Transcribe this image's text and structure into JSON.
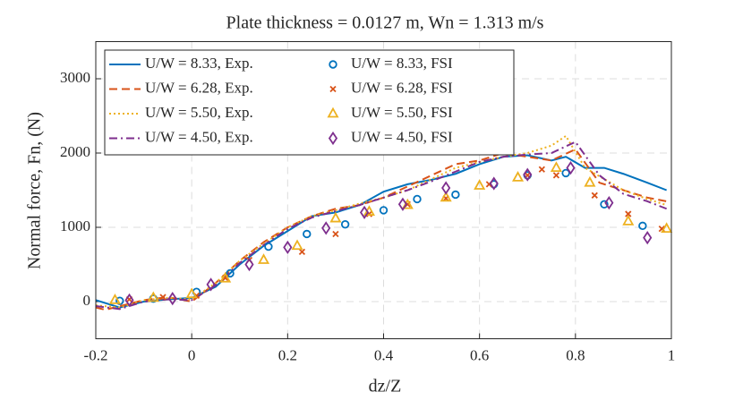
{
  "chart_data": {
    "type": "line",
    "title": "Plate thickness = 0.0127 m, Wn = 1.313 m/s",
    "x_label": "dz/Z",
    "y_label": "Normal force, Fn, (N)",
    "xlim": [
      -0.2,
      1
    ],
    "xticks": [
      -0.2,
      0,
      0.2,
      0.4,
      0.6,
      0.8,
      1
    ],
    "ylim": [
      -500,
      3500
    ],
    "yticks": [
      0,
      1000,
      2000,
      3000
    ],
    "grid": true,
    "legend": "upper left",
    "series": [
      {
        "name": "U/W = 8.33, Exp.",
        "color": "#0072BD",
        "mode": "line",
        "style": "solid",
        "x": [
          -0.2,
          -0.15,
          -0.1,
          -0.05,
          0,
          0.05,
          0.1,
          0.15,
          0.2,
          0.25,
          0.3,
          0.35,
          0.4,
          0.45,
          0.5,
          0.55,
          0.6,
          0.65,
          0.7,
          0.75,
          0.78,
          0.82,
          0.86,
          0.9,
          0.95,
          0.99
        ],
        "values": [
          20,
          -80,
          0,
          30,
          50,
          200,
          500,
          750,
          950,
          1150,
          1200,
          1300,
          1480,
          1580,
          1640,
          1720,
          1850,
          1950,
          1970,
          1900,
          1950,
          1800,
          1800,
          1720,
          1600,
          1500
        ]
      },
      {
        "name": "U/W = 6.28, Exp.",
        "color": "#D95319",
        "mode": "line",
        "style": "dashed",
        "x": [
          -0.2,
          -0.18,
          -0.1,
          -0.05,
          0,
          0.05,
          0.1,
          0.15,
          0.2,
          0.25,
          0.3,
          0.35,
          0.4,
          0.45,
          0.5,
          0.55,
          0.6,
          0.65,
          0.7,
          0.75,
          0.8,
          0.85,
          0.9,
          0.95,
          0.99
        ],
        "values": [
          -80,
          -110,
          20,
          60,
          0,
          250,
          550,
          800,
          1000,
          1150,
          1250,
          1300,
          1400,
          1550,
          1700,
          1850,
          1900,
          2000,
          1950,
          1900,
          2050,
          1600,
          1500,
          1400,
          1350
        ]
      },
      {
        "name": "U/W = 5.50, Exp.",
        "color": "#EDB120",
        "mode": "line",
        "style": "dotted",
        "x": [
          -0.2,
          -0.15,
          -0.1,
          -0.05,
          0,
          0.05,
          0.1,
          0.15,
          0.2,
          0.25,
          0.3,
          0.35,
          0.4,
          0.45,
          0.5,
          0.55,
          0.6,
          0.65,
          0.7,
          0.75,
          0.78,
          0.82,
          0.86,
          0.9,
          0.95,
          0.99
        ],
        "values": [
          -50,
          -80,
          20,
          50,
          30,
          250,
          550,
          780,
          1000,
          1150,
          1230,
          1320,
          1400,
          1500,
          1650,
          1800,
          1880,
          1950,
          2000,
          2100,
          2230,
          1800,
          1650,
          1500,
          1380,
          1300
        ]
      },
      {
        "name": "U/W = 4.50, Exp.",
        "color": "#7E2F8E",
        "mode": "line",
        "style": "dashdot",
        "x": [
          -0.2,
          -0.15,
          -0.1,
          -0.05,
          0,
          0.05,
          0.1,
          0.15,
          0.2,
          0.25,
          0.3,
          0.35,
          0.4,
          0.45,
          0.5,
          0.55,
          0.6,
          0.65,
          0.7,
          0.75,
          0.8,
          0.85,
          0.9,
          0.95,
          0.99
        ],
        "values": [
          -60,
          -100,
          0,
          30,
          20,
          220,
          520,
          760,
          980,
          1130,
          1220,
          1300,
          1400,
          1500,
          1620,
          1750,
          1880,
          1950,
          1980,
          2000,
          2150,
          1700,
          1450,
          1350,
          1250
        ]
      },
      {
        "name": "U/W = 8.33, FSI",
        "color": "#0072BD",
        "mode": "marker",
        "marker": "circle",
        "x": [
          -0.15,
          -0.08,
          0.01,
          0.08,
          0.16,
          0.24,
          0.32,
          0.4,
          0.47,
          0.55,
          0.63,
          0.7,
          0.78,
          0.86,
          0.94
        ],
        "values": [
          10,
          40,
          130,
          380,
          740,
          910,
          1040,
          1230,
          1380,
          1440,
          1580,
          1700,
          1730,
          1310,
          1020
        ]
      },
      {
        "name": "U/W = 6.28, FSI",
        "color": "#D95319",
        "mode": "marker",
        "marker": "cross",
        "x": [
          -0.13,
          -0.06,
          0.01,
          0.07,
          0.12,
          0.23,
          0.3,
          0.37,
          0.45,
          0.53,
          0.62,
          0.7,
          0.73,
          0.76,
          0.84,
          0.91,
          0.98
        ],
        "values": [
          30,
          60,
          80,
          320,
          560,
          670,
          910,
          1180,
          1310,
          1390,
          1580,
          1700,
          1780,
          1700,
          1430,
          1180,
          980
        ]
      },
      {
        "name": "U/W = 5.50, FSI",
        "color": "#EDB120",
        "mode": "marker",
        "marker": "triangle",
        "x": [
          -0.16,
          -0.08,
          0,
          0.07,
          0.15,
          0.22,
          0.3,
          0.37,
          0.45,
          0.53,
          0.6,
          0.68,
          0.76,
          0.83,
          0.91,
          0.99
        ],
        "values": [
          20,
          50,
          100,
          310,
          560,
          750,
          1120,
          1210,
          1300,
          1400,
          1560,
          1670,
          1800,
          1600,
          1080,
          980
        ]
      },
      {
        "name": "U/W = 4.50, FSI",
        "color": "#7E2F8E",
        "mode": "marker",
        "marker": "diamond",
        "x": [
          -0.13,
          -0.04,
          0.04,
          0.12,
          0.2,
          0.28,
          0.36,
          0.44,
          0.53,
          0.63,
          0.7,
          0.79,
          0.87,
          0.95
        ],
        "values": [
          20,
          40,
          230,
          500,
          730,
          990,
          1200,
          1310,
          1530,
          1590,
          1710,
          1800,
          1330,
          860
        ]
      }
    ]
  }
}
